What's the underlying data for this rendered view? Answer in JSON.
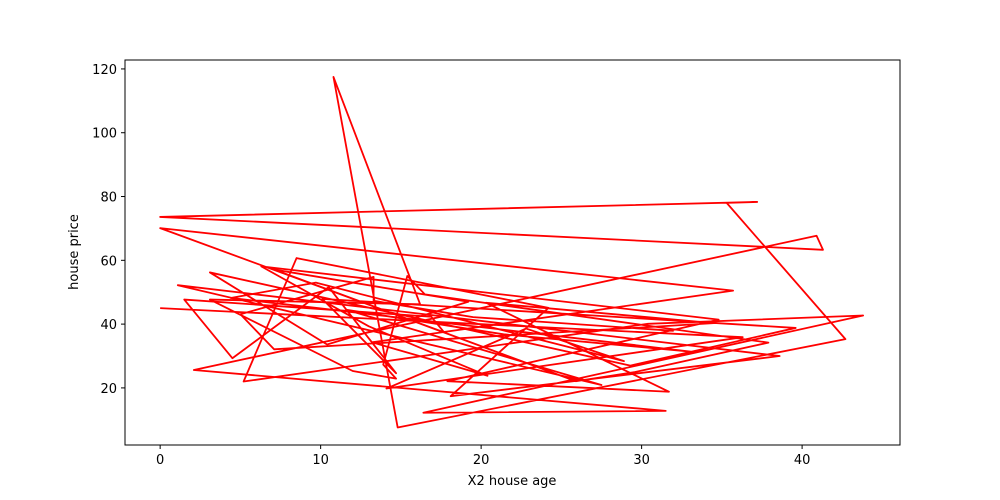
{
  "chart_data": {
    "type": "line",
    "xlabel": "X2 house age",
    "ylabel": "house price",
    "x": [
      32,
      19.5,
      13.3,
      13.3,
      5,
      7.1,
      34.5,
      20.3,
      31.7,
      17.9,
      34.8,
      6.3,
      13,
      20.4,
      13.2,
      35.7,
      0,
      17.7,
      16.9,
      1.5,
      4.5,
      10.5,
      14.7,
      10.1,
      39.6,
      29.3,
      3.1,
      10.4,
      19.2,
      7.1,
      25.9,
      29.6,
      37.9,
      16.5,
      15.4,
      13.9,
      14.7,
      12,
      3.1,
      16.2,
      10.8,
      14.8,
      42.7,
      35.3,
      37.2,
      0,
      41.3,
      40.9,
      2.1,
      31.5,
      16.4,
      43.8,
      30.4,
      5.2,
      8.5,
      24.2,
      18.1,
      38.6,
      1.1,
      27.5,
      11.6,
      21.4,
      33.2,
      4.4,
      9.7,
      28.9,
      22.8,
      14.1,
      36.3,
      0
    ],
    "values": [
      37.9,
      42.2,
      47.3,
      54.8,
      43.1,
      32.1,
      40.3,
      46.7,
      18.8,
      22.1,
      41.4,
      58.1,
      39.3,
      23.8,
      34.3,
      50.5,
      70.1,
      37.4,
      42.3,
      47.7,
      29.3,
      51.6,
      24.6,
      47.9,
      38.8,
      27,
      56.2,
      33.6,
      47,
      57.1,
      22.1,
      25,
      34.2,
      49.3,
      55.1,
      27.3,
      22.9,
      25.3,
      47.7,
      46.2,
      117.5,
      7.6,
      35.3,
      78,
      78.3,
      73.6,
      63.3,
      67.7,
      25.6,
      12.8,
      12.2,
      42.7,
      40.1,
      22,
      60.7,
      45.1,
      17.4,
      30,
      52.2,
      20.9,
      44.5,
      36.8,
      31.3,
      48.2,
      53,
      28.4,
      38.6,
      19.8,
      35.9,
      45
    ],
    "color": "#ff0000",
    "xlim": [
      -2.19,
      46.1
    ],
    "ylim": [
      2.1,
      122.8
    ],
    "xticks": [
      0,
      10,
      20,
      30,
      40
    ],
    "yticks": [
      20,
      40,
      60,
      80,
      100,
      120
    ]
  }
}
